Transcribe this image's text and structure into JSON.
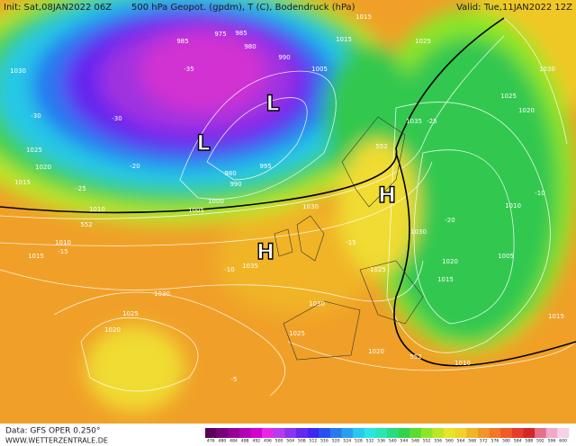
{
  "header": {
    "init": "Init: Sat,08JAN2022 06Z",
    "title": "500 hPa Geopot. (gpdm), T (C), Bodendruck (hPa)",
    "valid": "Valid: Tue,11JAN2022 12Z"
  },
  "footer": {
    "data": "Data: GFS OPER 0.250°",
    "site": "WWW.WETTERZENTRALE.DE"
  },
  "pressure_centers": [
    "H",
    "H",
    "L",
    "L"
  ],
  "isobar_labels": [
    "1015",
    "1015",
    "1025",
    "1030",
    "1005",
    "1030",
    "1025",
    "1020",
    "1035",
    "1025",
    "1020",
    "1015",
    "1010",
    "1005",
    "1000",
    "1030",
    "1030",
    "1010",
    "1015",
    "1035",
    "1025",
    "1020",
    "1015",
    "1005",
    "1030",
    "1030",
    "1025",
    "1020",
    "1025",
    "1020",
    "1010",
    "1015",
    "1010",
    "990",
    "985",
    "980",
    "975",
    "985",
    "995",
    "990",
    "980"
  ],
  "height_labels": [
    "552",
    "552",
    "552"
  ],
  "temperature_labels": [
    "-35",
    "-30",
    "-30",
    "-25",
    "-25",
    "-20",
    "-20",
    "-15",
    "-15",
    "-10",
    "-10",
    "-5"
  ],
  "colorbar": {
    "values": [
      476,
      480,
      484,
      488,
      492,
      496,
      500,
      504,
      508,
      512,
      516,
      520,
      524,
      528,
      532,
      536,
      540,
      544,
      548,
      552,
      556,
      560,
      564,
      568,
      572,
      576,
      580,
      584,
      588,
      592,
      596,
      600
    ],
    "colors": [
      "#5a005a",
      "#780078",
      "#960096",
      "#b400b4",
      "#d200d2",
      "#e628e6",
      "#b43cf0",
      "#8c32f0",
      "#6428f0",
      "#3c28f0",
      "#2850f0",
      "#2878f0",
      "#28a0f0",
      "#28c8f0",
      "#28e6e6",
      "#28e6b4",
      "#28dc82",
      "#32d250",
      "#5adc32",
      "#8ce628",
      "#bee628",
      "#e6e628",
      "#f0d228",
      "#f0b428",
      "#f09628",
      "#f07828",
      "#f05a28",
      "#e63c28",
      "#d22828",
      "#e66e8c",
      "#f0aac8",
      "#f5d2e6"
    ]
  }
}
